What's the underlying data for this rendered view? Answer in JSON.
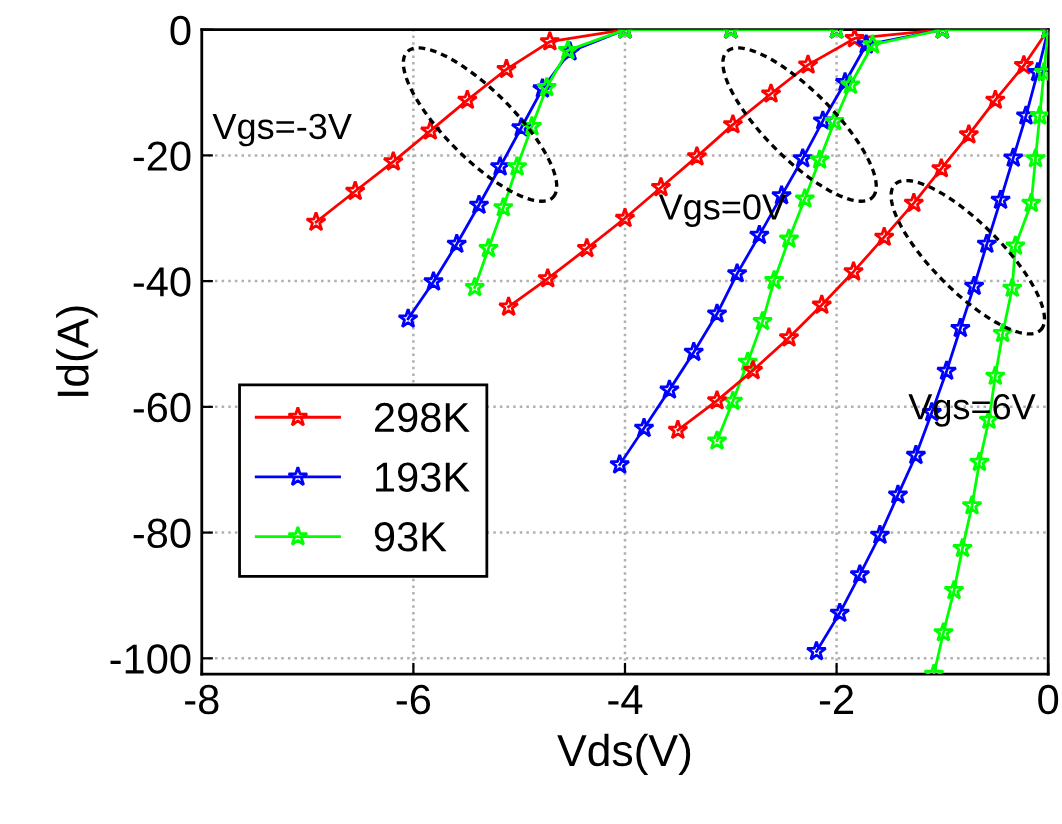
{
  "chart_data": {
    "type": "line",
    "xlabel": "Vds(V)",
    "ylabel": "Id(A)",
    "xlim": [
      -8,
      0
    ],
    "xticks": [
      -8,
      -6,
      -4,
      -2,
      0
    ],
    "ylim": [
      -102.5,
      0
    ],
    "yticks": [
      -100,
      -80,
      -60,
      -40,
      -20,
      0
    ],
    "grid": true,
    "legend": "center left",
    "marker": "star",
    "line_style": "solid",
    "series": [
      {
        "name": "298K",
        "color": "#ff0000",
        "x": [
          -6.92,
          -6.55,
          -6.19,
          -5.84,
          -5.49,
          -5.12,
          -4.71,
          -4.0,
          -3.0,
          -2.0
        ],
        "values": [
          -30.6,
          -25.7,
          -21.0,
          -16.1,
          -11.2,
          -6.3,
          -1.9,
          0,
          0,
          0
        ]
      },
      {
        "name": "193K",
        "color": "#0000ff",
        "x": [
          -6.05,
          -5.81,
          -5.59,
          -5.38,
          -5.18,
          -4.98,
          -4.78,
          -4.52,
          -4.0,
          -3.0,
          -2.0
        ],
        "values": [
          -46.0,
          -40.1,
          -34.1,
          -27.9,
          -21.8,
          -15.6,
          -9.4,
          -3.5,
          0,
          0,
          0
        ]
      },
      {
        "name": "93K",
        "color": "#00ff00",
        "x": [
          -5.42,
          -5.29,
          -5.15,
          -5.02,
          -4.88,
          -4.74,
          -4.54,
          -4.0,
          -3.0,
          -2.0
        ],
        "values": [
          -41.0,
          -34.8,
          -28.3,
          -21.8,
          -15.4,
          -9.2,
          -3.3,
          0,
          0,
          0
        ]
      },
      {
        "color": "#ff0000",
        "x": [
          -5.1,
          -4.73,
          -4.36,
          -4.0,
          -3.66,
          -3.32,
          -2.98,
          -2.62,
          -2.27,
          -1.83,
          -1.0,
          0.0
        ],
        "values": [
          -44.1,
          -39.6,
          -34.8,
          -30.0,
          -25.1,
          -20.2,
          -15.1,
          -10.2,
          -5.6,
          -1.4,
          0,
          0
        ]
      },
      {
        "color": "#0000ff",
        "x": [
          -4.05,
          -3.82,
          -3.58,
          -3.35,
          -3.13,
          -2.94,
          -2.73,
          -2.52,
          -2.32,
          -2.13,
          -1.92,
          -1.72,
          -1.0,
          0.0
        ],
        "values": [
          -69.2,
          -63.4,
          -57.3,
          -51.3,
          -45.2,
          -38.8,
          -32.7,
          -26.4,
          -20.5,
          -14.5,
          -8.4,
          -2.4,
          0,
          0
        ]
      },
      {
        "color": "#00ff00",
        "x": [
          -3.13,
          -2.98,
          -2.84,
          -2.7,
          -2.59,
          -2.45,
          -2.3,
          -2.16,
          -2.02,
          -1.87,
          -1.66,
          -1.0,
          0.0
        ],
        "values": [
          -65.4,
          -59.1,
          -52.9,
          -46.4,
          -39.9,
          -33.3,
          -26.9,
          -20.7,
          -14.6,
          -8.8,
          -2.4,
          0,
          0
        ]
      },
      {
        "color": "#ff0000",
        "x": [
          -3.5,
          -3.13,
          -2.79,
          -2.45,
          -2.14,
          -1.84,
          -1.55,
          -1.27,
          -1.01,
          -0.75,
          -0.5,
          -0.23,
          0.0
        ],
        "values": [
          -63.7,
          -59.0,
          -54.2,
          -49.0,
          -43.8,
          -38.5,
          -33.0,
          -27.6,
          -22.1,
          -16.7,
          -11.2,
          -5.7,
          0
        ]
      },
      {
        "color": "#0000ff",
        "x": [
          -2.19,
          -1.97,
          -1.78,
          -1.59,
          -1.42,
          -1.25,
          -1.1,
          -0.96,
          -0.83,
          -0.7,
          -0.58,
          -0.45,
          -0.33,
          -0.21,
          -0.1,
          0.0
        ],
        "values": [
          -98.9,
          -92.8,
          -86.7,
          -80.4,
          -74.0,
          -67.7,
          -60.9,
          -54.3,
          -47.5,
          -40.8,
          -34.1,
          -27.1,
          -20.4,
          -13.7,
          -6.8,
          0
        ]
      },
      {
        "color": "#00ff00",
        "x": [
          -1.08,
          -0.99,
          -0.89,
          -0.81,
          -0.72,
          -0.65,
          -0.56,
          -0.5,
          -0.43,
          -0.34,
          -0.31,
          -0.16,
          -0.12,
          -0.08,
          -0.04,
          0.0
        ],
        "values": [
          -102.5,
          -95.9,
          -89.2,
          -82.5,
          -75.7,
          -68.8,
          -62.1,
          -55.1,
          -48.3,
          -41.1,
          -34.4,
          -27.6,
          -20.5,
          -13.7,
          -6.8,
          0
        ]
      }
    ],
    "annotations": [
      "Vgs=-3V",
      "Vgs=0V",
      "Vgs=6V"
    ]
  }
}
